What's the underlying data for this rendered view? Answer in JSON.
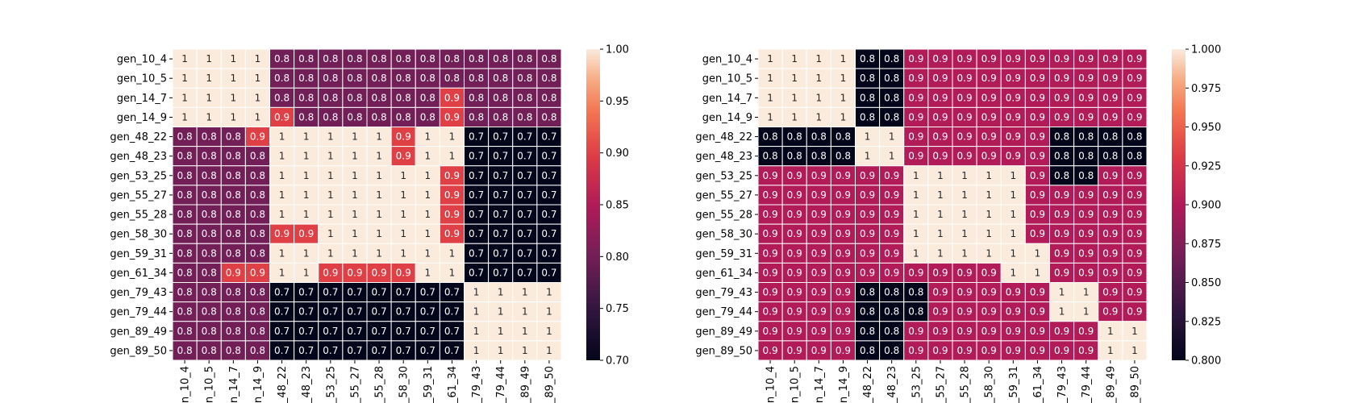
{
  "chart_data": [
    {
      "type": "heatmap",
      "title": "",
      "xlabel": "",
      "ylabel": "",
      "labels": [
        "gen_10_4",
        "gen_10_5",
        "gen_14_7",
        "gen_14_9",
        "gen_48_22",
        "gen_48_23",
        "gen_53_25",
        "gen_55_27",
        "gen_55_28",
        "gen_58_30",
        "gen_59_31",
        "gen_61_34",
        "gen_79_43",
        "gen_79_44",
        "gen_89_49",
        "gen_89_50"
      ],
      "values": [
        [
          1,
          1,
          1,
          1,
          0.8,
          0.8,
          0.8,
          0.8,
          0.8,
          0.8,
          0.8,
          0.8,
          0.8,
          0.8,
          0.8,
          0.8
        ],
        [
          1,
          1,
          1,
          1,
          0.8,
          0.8,
          0.8,
          0.8,
          0.8,
          0.8,
          0.8,
          0.8,
          0.8,
          0.8,
          0.8,
          0.8
        ],
        [
          1,
          1,
          1,
          1,
          0.8,
          0.8,
          0.8,
          0.8,
          0.8,
          0.8,
          0.8,
          0.9,
          0.8,
          0.8,
          0.8,
          0.8
        ],
        [
          1,
          1,
          1,
          1,
          0.9,
          0.8,
          0.8,
          0.8,
          0.8,
          0.8,
          0.8,
          0.9,
          0.8,
          0.8,
          0.8,
          0.8
        ],
        [
          0.8,
          0.8,
          0.8,
          0.9,
          1,
          1,
          1,
          1,
          1,
          0.9,
          1,
          1,
          0.7,
          0.7,
          0.7,
          0.7
        ],
        [
          0.8,
          0.8,
          0.8,
          0.8,
          1,
          1,
          1,
          1,
          1,
          0.9,
          1,
          1,
          0.7,
          0.7,
          0.7,
          0.7
        ],
        [
          0.8,
          0.8,
          0.8,
          0.8,
          1,
          1,
          1,
          1,
          1,
          1,
          1,
          0.9,
          0.7,
          0.7,
          0.7,
          0.7
        ],
        [
          0.8,
          0.8,
          0.8,
          0.8,
          1,
          1,
          1,
          1,
          1,
          1,
          1,
          0.9,
          0.7,
          0.7,
          0.7,
          0.7
        ],
        [
          0.8,
          0.8,
          0.8,
          0.8,
          1,
          1,
          1,
          1,
          1,
          1,
          1,
          0.9,
          0.7,
          0.7,
          0.7,
          0.7
        ],
        [
          0.8,
          0.8,
          0.8,
          0.8,
          0.9,
          0.9,
          1,
          1,
          1,
          1,
          1,
          0.9,
          0.7,
          0.7,
          0.7,
          0.7
        ],
        [
          0.8,
          0.8,
          0.8,
          0.8,
          1,
          1,
          1,
          1,
          1,
          1,
          1,
          1,
          0.7,
          0.7,
          0.7,
          0.7
        ],
        [
          0.8,
          0.8,
          0.9,
          0.9,
          1,
          1,
          0.9,
          0.9,
          0.9,
          0.9,
          1,
          1,
          0.7,
          0.7,
          0.7,
          0.7
        ],
        [
          0.8,
          0.8,
          0.8,
          0.8,
          0.7,
          0.7,
          0.7,
          0.7,
          0.7,
          0.7,
          0.7,
          0.7,
          1,
          1,
          1,
          1
        ],
        [
          0.8,
          0.8,
          0.8,
          0.8,
          0.7,
          0.7,
          0.7,
          0.7,
          0.7,
          0.7,
          0.7,
          0.7,
          1,
          1,
          1,
          1
        ],
        [
          0.8,
          0.8,
          0.8,
          0.8,
          0.7,
          0.7,
          0.7,
          0.7,
          0.7,
          0.7,
          0.7,
          0.7,
          1,
          1,
          1,
          1
        ],
        [
          0.8,
          0.8,
          0.8,
          0.8,
          0.7,
          0.7,
          0.7,
          0.7,
          0.7,
          0.7,
          0.7,
          0.7,
          1,
          1,
          1,
          1
        ]
      ],
      "colorbar": {
        "min": 0.7,
        "max": 1.0,
        "ticks": [
          "0.70",
          "0.75",
          "0.80",
          "0.85",
          "0.90",
          "0.95",
          "1.00"
        ],
        "colormap": "rocket"
      },
      "grid": false
    },
    {
      "type": "heatmap",
      "title": "",
      "xlabel": "",
      "ylabel": "",
      "labels": [
        "gen_10_4",
        "gen_10_5",
        "gen_14_7",
        "gen_14_9",
        "gen_48_22",
        "gen_48_23",
        "gen_53_25",
        "gen_55_27",
        "gen_55_28",
        "gen_58_30",
        "gen_59_31",
        "gen_61_34",
        "gen_79_43",
        "gen_79_44",
        "gen_89_49",
        "gen_89_50"
      ],
      "values": [
        [
          1,
          1,
          1,
          1,
          0.8,
          0.8,
          0.9,
          0.9,
          0.9,
          0.9,
          0.9,
          0.9,
          0.9,
          0.9,
          0.9,
          0.9
        ],
        [
          1,
          1,
          1,
          1,
          0.8,
          0.8,
          0.9,
          0.9,
          0.9,
          0.9,
          0.9,
          0.9,
          0.9,
          0.9,
          0.9,
          0.9
        ],
        [
          1,
          1,
          1,
          1,
          0.8,
          0.8,
          0.9,
          0.9,
          0.9,
          0.9,
          0.9,
          0.9,
          0.9,
          0.9,
          0.9,
          0.9
        ],
        [
          1,
          1,
          1,
          1,
          0.8,
          0.8,
          0.9,
          0.9,
          0.9,
          0.9,
          0.9,
          0.9,
          0.9,
          0.9,
          0.9,
          0.9
        ],
        [
          0.8,
          0.8,
          0.8,
          0.8,
          1,
          1,
          0.9,
          0.9,
          0.9,
          0.9,
          0.9,
          0.9,
          0.8,
          0.8,
          0.8,
          0.8
        ],
        [
          0.8,
          0.8,
          0.8,
          0.8,
          1,
          1,
          0.9,
          0.9,
          0.9,
          0.9,
          0.9,
          0.9,
          0.8,
          0.8,
          0.8,
          0.8
        ],
        [
          0.9,
          0.9,
          0.9,
          0.9,
          0.9,
          0.9,
          1,
          1,
          1,
          1,
          1,
          0.9,
          0.8,
          0.8,
          0.9,
          0.9
        ],
        [
          0.9,
          0.9,
          0.9,
          0.9,
          0.9,
          0.9,
          1,
          1,
          1,
          1,
          1,
          0.9,
          0.9,
          0.9,
          0.9,
          0.9
        ],
        [
          0.9,
          0.9,
          0.9,
          0.9,
          0.9,
          0.9,
          1,
          1,
          1,
          1,
          1,
          0.9,
          0.9,
          0.9,
          0.9,
          0.9
        ],
        [
          0.9,
          0.9,
          0.9,
          0.9,
          0.9,
          0.9,
          1,
          1,
          1,
          1,
          1,
          0.9,
          0.9,
          0.9,
          0.9,
          0.9
        ],
        [
          0.9,
          0.9,
          0.9,
          0.9,
          0.9,
          0.9,
          1,
          1,
          1,
          1,
          1,
          1,
          0.9,
          0.9,
          0.9,
          0.9
        ],
        [
          0.9,
          0.9,
          0.9,
          0.9,
          0.9,
          0.9,
          0.9,
          0.9,
          0.9,
          0.9,
          1,
          1,
          0.9,
          0.9,
          0.9,
          0.9
        ],
        [
          0.9,
          0.9,
          0.9,
          0.9,
          0.8,
          0.8,
          0.8,
          0.9,
          0.9,
          0.9,
          0.9,
          0.9,
          1,
          1,
          0.9,
          0.9
        ],
        [
          0.9,
          0.9,
          0.9,
          0.9,
          0.8,
          0.8,
          0.8,
          0.9,
          0.9,
          0.9,
          0.9,
          0.9,
          1,
          1,
          0.9,
          0.9
        ],
        [
          0.9,
          0.9,
          0.9,
          0.9,
          0.8,
          0.8,
          0.9,
          0.9,
          0.9,
          0.9,
          0.9,
          0.9,
          0.9,
          0.9,
          1,
          1
        ],
        [
          0.9,
          0.9,
          0.9,
          0.9,
          0.8,
          0.8,
          0.9,
          0.9,
          0.9,
          0.9,
          0.9,
          0.9,
          0.9,
          0.9,
          1,
          1
        ]
      ],
      "colorbar": {
        "min": 0.8,
        "max": 1.0,
        "ticks": [
          "0.800",
          "0.825",
          "0.850",
          "0.875",
          "0.900",
          "0.925",
          "0.950",
          "0.975",
          "1.000"
        ],
        "colormap": "rocket"
      },
      "grid": false
    }
  ]
}
